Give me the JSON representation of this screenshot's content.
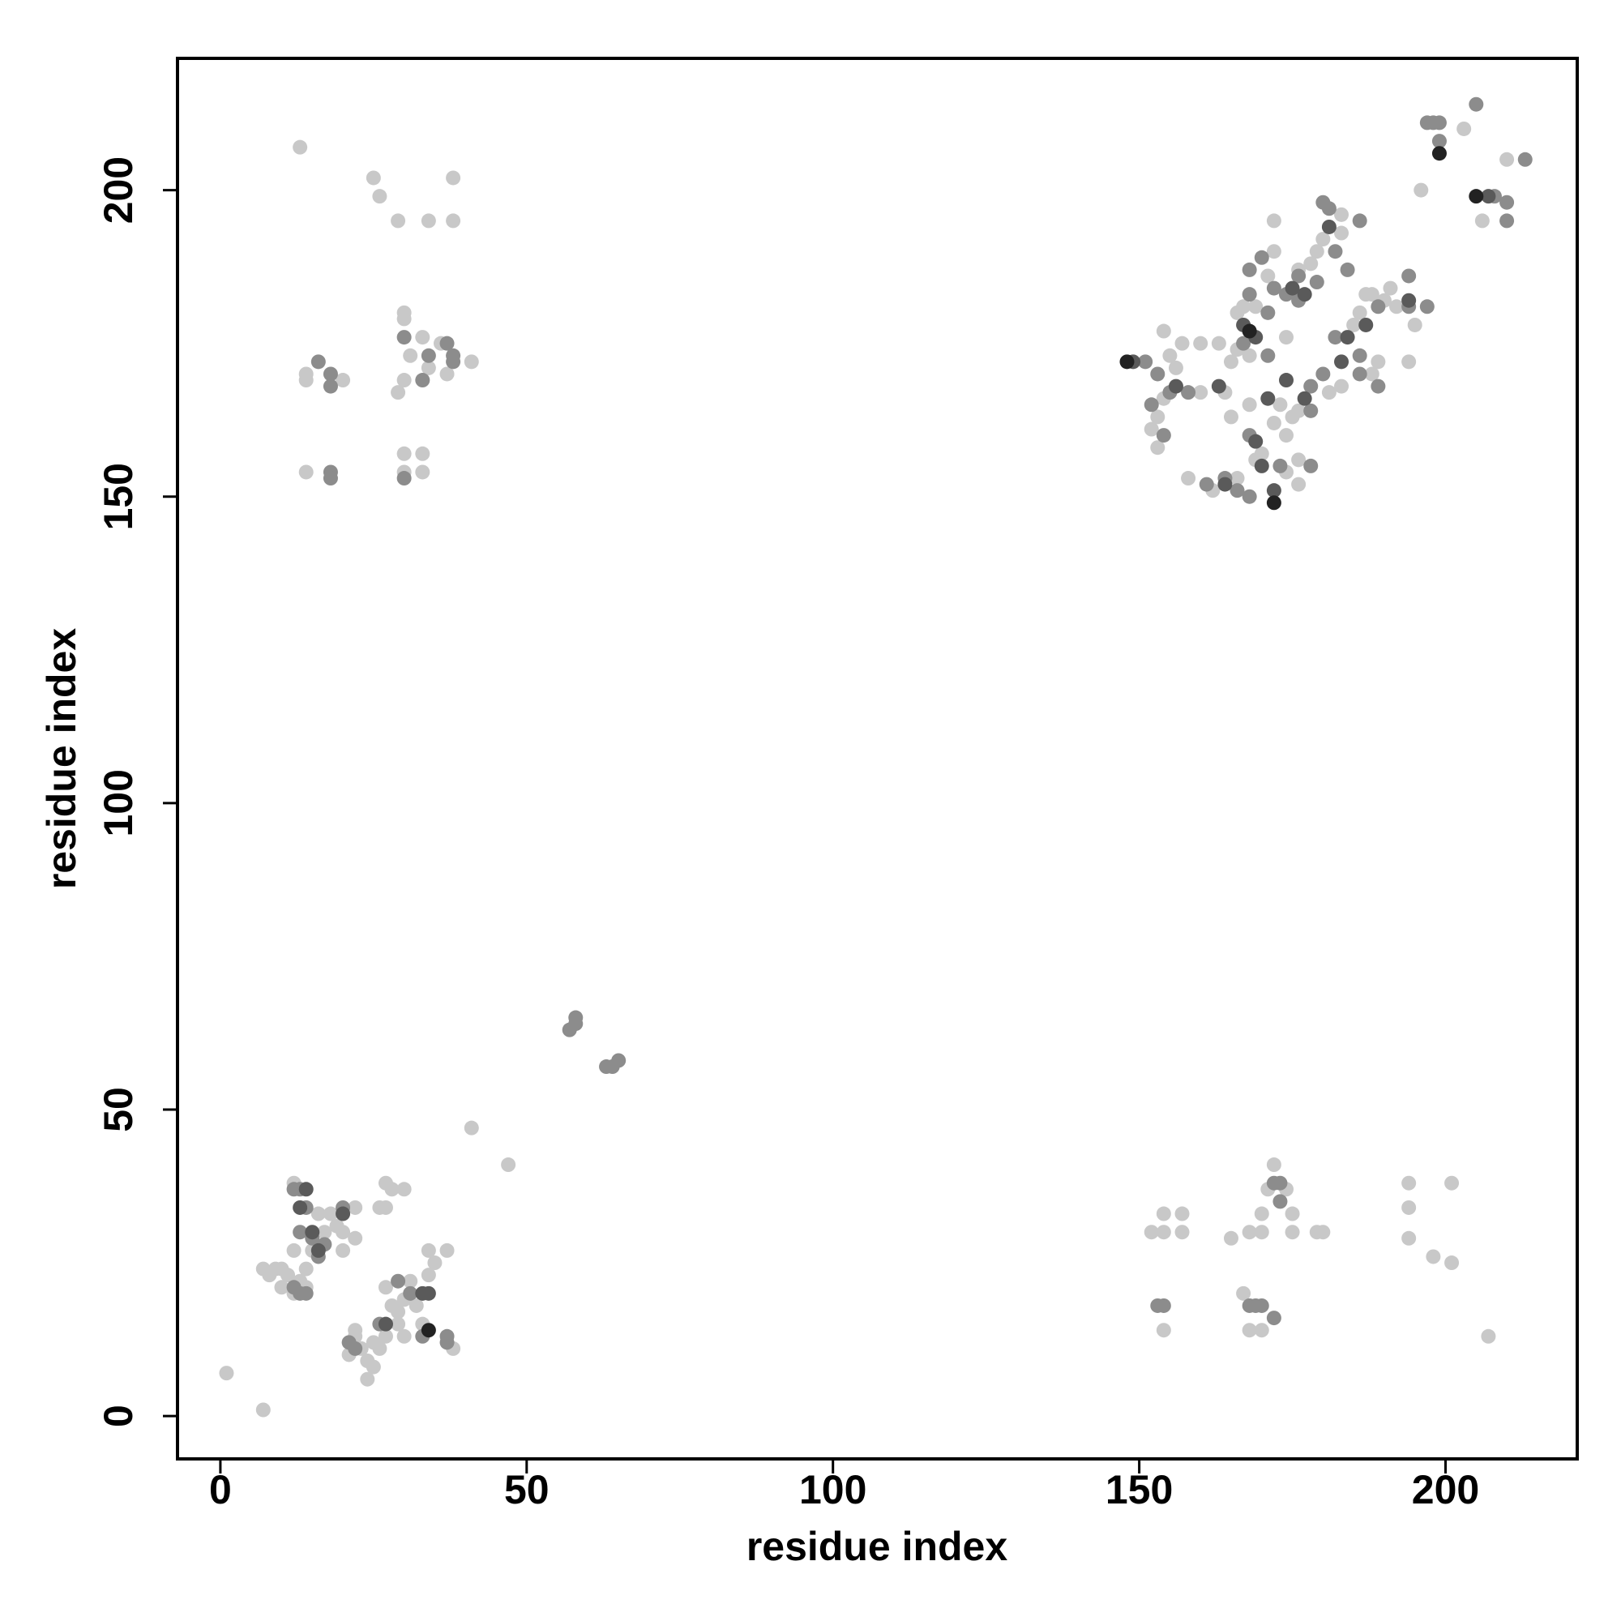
{
  "chart_data": {
    "type": "scatter",
    "xlabel": "residue index",
    "ylabel": "residue index",
    "xlim": [
      -7,
      221.5
    ],
    "ylim": [
      -7,
      221.5
    ],
    "xticks": [
      0,
      50,
      100,
      150,
      200
    ],
    "yticks": [
      0,
      50,
      100,
      150,
      200
    ],
    "grid": false,
    "series": [
      {
        "color": "#c8c8c8",
        "x": [
          1,
          7,
          41,
          47,
          7,
          8,
          9,
          10,
          10,
          11,
          12,
          12,
          13,
          14,
          14,
          15,
          16,
          17,
          18,
          19,
          20,
          20,
          22,
          22,
          25,
          24,
          24,
          23,
          22,
          26,
          27,
          28,
          27,
          29,
          30,
          31,
          32,
          33,
          34,
          34,
          35,
          37,
          38,
          27,
          28,
          30,
          26,
          27,
          12,
          25,
          21,
          22,
          29,
          30,
          13,
          25,
          26,
          29,
          34,
          38,
          38,
          14,
          14,
          14,
          20,
          29,
          30,
          30,
          30,
          31,
          33,
          34,
          36,
          37,
          41,
          30,
          33,
          33,
          30,
          207,
          201,
          198,
          201,
          194,
          194,
          194,
          152,
          154,
          154,
          157,
          157,
          154,
          168,
          170,
          167,
          168,
          170,
          170,
          171,
          172,
          174,
          175,
          175,
          179,
          180,
          165,
          153,
          152,
          153,
          154,
          155,
          156,
          157,
          154,
          160,
          163,
          166,
          165,
          164,
          160,
          158,
          162,
          166,
          169,
          170,
          172,
          173,
          174,
          175,
          176,
          174,
          176,
          176,
          166,
          167,
          169,
          171,
          172,
          172,
          176,
          178,
          179,
          180,
          183,
          183,
          185,
          186,
          187,
          188,
          190,
          191,
          192,
          189,
          188,
          195,
          194,
          196,
          203,
          206,
          210,
          181,
          183,
          168,
          165,
          168,
          174
        ],
        "values": [
          7,
          1,
          47,
          41,
          24,
          23,
          24,
          21,
          24,
          23,
          20,
          27,
          22,
          21,
          24,
          27,
          33,
          30,
          33,
          31,
          27,
          30,
          29,
          34,
          8,
          6,
          9,
          11,
          14,
          11,
          13,
          18,
          21,
          17,
          19,
          22,
          18,
          15,
          23,
          27,
          25,
          27,
          11,
          38,
          37,
          37,
          34,
          34,
          38,
          12,
          10,
          13,
          15,
          13,
          207,
          202,
          199,
          195,
          195,
          195,
          202,
          169,
          170,
          154,
          169,
          167,
          169,
          179,
          180,
          173,
          176,
          171,
          175,
          170,
          172,
          157,
          157,
          154,
          154,
          13,
          38,
          26,
          25,
          38,
          34,
          29,
          30,
          30,
          33,
          33,
          30,
          14,
          14,
          14,
          20,
          30,
          30,
          33,
          37,
          41,
          37,
          33,
          30,
          30,
          30,
          29,
          158,
          161,
          163,
          166,
          173,
          171,
          175,
          177,
          175,
          175,
          174,
          172,
          167,
          167,
          153,
          151,
          153,
          156,
          157,
          162,
          165,
          160,
          163,
          164,
          154,
          156,
          152,
          180,
          181,
          181,
          186,
          190,
          195,
          187,
          188,
          190,
          192,
          196,
          193,
          178,
          180,
          183,
          183,
          182,
          184,
          181,
          172,
          170,
          178,
          172,
          200,
          210,
          195,
          205,
          167,
          168,
          165,
          163,
          173,
          176
        ]
      },
      {
        "color": "#8c8c8c",
        "x": [
          57,
          58,
          58,
          63,
          64,
          65,
          12,
          13,
          14,
          15,
          16,
          17,
          20,
          21,
          22,
          26,
          29,
          31,
          33,
          37,
          37,
          12,
          13,
          14,
          13,
          16,
          18,
          18,
          18,
          18,
          30,
          33,
          34,
          38,
          38,
          30,
          37,
          153,
          154,
          168,
          170,
          172,
          172,
          173,
          173,
          169,
          151,
          153,
          155,
          152,
          154,
          158,
          161,
          166,
          168,
          168,
          170,
          168,
          171,
          174,
          176,
          176,
          179,
          180,
          181,
          182,
          184,
          186,
          178,
          178,
          180,
          182,
          186,
          186,
          189,
          189,
          194,
          194,
          197,
          197,
          198,
          199,
          199,
          205,
          208,
          210,
          210,
          213,
          167,
          173,
          168,
          172,
          178,
          171,
          164
        ],
        "values": [
          63,
          64,
          65,
          57,
          57,
          58,
          37,
          37,
          34,
          29,
          26,
          28,
          34,
          12,
          11,
          15,
          22,
          20,
          13,
          13,
          12,
          21,
          20,
          20,
          30,
          172,
          170,
          168,
          154,
          153,
          176,
          169,
          173,
          172,
          173,
          153,
          175,
          18,
          18,
          18,
          18,
          16,
          38,
          38,
          35,
          18,
          172,
          170,
          167,
          165,
          160,
          167,
          152,
          151,
          160,
          187,
          189,
          183,
          180,
          183,
          186,
          182,
          185,
          198,
          197,
          190,
          187,
          195,
          168,
          164,
          170,
          176,
          173,
          170,
          168,
          181,
          186,
          181,
          181,
          211,
          211,
          211,
          208,
          214,
          199,
          198,
          195,
          205,
          175,
          155,
          150,
          184,
          155,
          173,
          153
        ]
      },
      {
        "color": "#5a5a5a",
        "x": [
          13,
          14,
          20,
          34,
          33,
          27,
          15,
          16,
          149,
          156,
          163,
          167,
          169,
          172,
          174,
          175,
          177,
          181,
          183,
          184,
          187,
          194,
          207,
          169,
          170,
          164,
          171,
          177
        ],
        "values": [
          34,
          37,
          33,
          20,
          20,
          15,
          30,
          27,
          172,
          168,
          168,
          178,
          176,
          151,
          169,
          184,
          183,
          194,
          172,
          176,
          178,
          182,
          199,
          159,
          155,
          152,
          166,
          166
        ]
      },
      {
        "color": "#222222",
        "x": [
          148,
          199,
          205,
          172,
          34,
          168
        ],
        "values": [
          172,
          206,
          199,
          149,
          14,
          177
        ]
      }
    ]
  }
}
